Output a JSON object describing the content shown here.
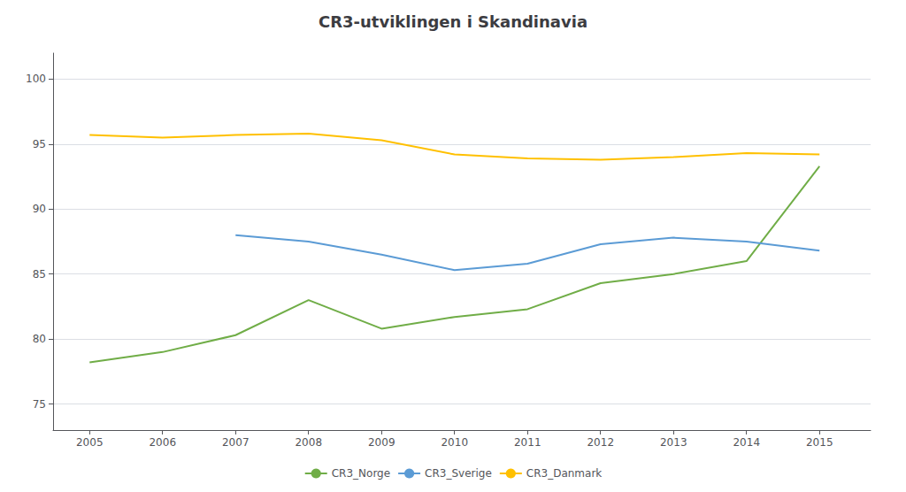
{
  "chart_data": {
    "type": "line",
    "title": "CR3-utviklingen i Skandinavia",
    "x": [
      2005,
      2006,
      2007,
      2008,
      2009,
      2010,
      2011,
      2012,
      2013,
      2014,
      2015
    ],
    "series": [
      {
        "name": "CR3_Norge",
        "color": "#70ad47",
        "values": [
          78.2,
          79.0,
          80.3,
          83.0,
          80.8,
          81.7,
          82.3,
          84.3,
          85.0,
          86.0,
          93.3
        ]
      },
      {
        "name": "CR3_Sverige",
        "color": "#5b9bd5",
        "values": [
          null,
          null,
          88.0,
          87.5,
          86.5,
          85.3,
          85.8,
          87.3,
          87.8,
          87.5,
          86.8
        ]
      },
      {
        "name": "CR3_Danmark",
        "color": "#ffc000",
        "values": [
          95.7,
          95.5,
          95.7,
          95.8,
          95.3,
          94.2,
          93.9,
          93.8,
          94.0,
          94.3,
          94.2
        ]
      }
    ],
    "xlim": [
      2004.5,
      2015.7
    ],
    "xticks": [
      2005,
      2006,
      2007,
      2008,
      2009,
      2010,
      2011,
      2012,
      2013,
      2014,
      2015
    ],
    "ylim": [
      73,
      102
    ],
    "yticks": [
      75,
      80,
      85,
      90,
      95,
      100
    ],
    "grid": true,
    "legend": "bottom"
  }
}
